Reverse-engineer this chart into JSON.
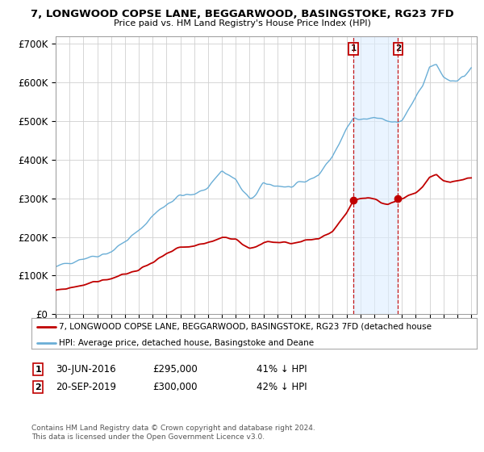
{
  "title": "7, LONGWOOD COPSE LANE, BEGGARWOOD, BASINGSTOKE, RG23 7FD",
  "subtitle": "Price paid vs. HM Land Registry's House Price Index (HPI)",
  "ylim": [
    0,
    720000
  ],
  "yticks": [
    0,
    100000,
    200000,
    300000,
    400000,
    500000,
    600000,
    700000
  ],
  "ytick_labels": [
    "£0",
    "£100K",
    "£200K",
    "£300K",
    "£400K",
    "£500K",
    "£600K",
    "£700K"
  ],
  "legend_line1": "7, LONGWOOD COPSE LANE, BEGGARWOOD, BASINGSTOKE, RG23 7FD (detached house",
  "legend_line2": "HPI: Average price, detached house, Basingstoke and Deane",
  "note": "Contains HM Land Registry data © Crown copyright and database right 2024.\nThis data is licensed under the Open Government Licence v3.0.",
  "sale1_date": "30-JUN-2016",
  "sale1_price": "£295,000",
  "sale1_hpi": "41% ↓ HPI",
  "sale2_date": "20-SEP-2019",
  "sale2_price": "£300,000",
  "sale2_hpi": "42% ↓ HPI",
  "hpi_color": "#6aaed6",
  "price_color": "#c00000",
  "grid_color": "#d0d0d0",
  "background_color": "#ffffff",
  "shade_color": "#ddeeff",
  "sale1_year": 2016.5,
  "sale2_year": 2019.72,
  "sale1_price_val": 295000,
  "sale2_price_val": 300000
}
